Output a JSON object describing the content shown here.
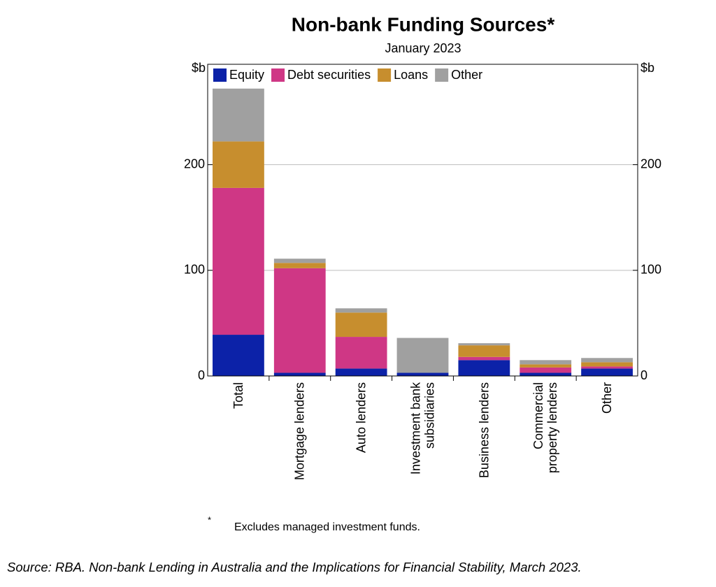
{
  "chart_data": {
    "type": "stacked_bar",
    "title": "Non-bank Funding Sources*",
    "subtitle": "January 2023",
    "ylabel": "$b",
    "y2label": "$b",
    "categories": [
      "Total",
      "Mortgage lenders",
      "Auto lenders",
      "Investment bank subsidiaries",
      "Business lenders",
      "Commercial property lenders",
      "Other"
    ],
    "series": [
      {
        "name": "Equity",
        "color": "#0c22a8",
        "values": [
          39,
          3,
          7,
          3,
          15,
          3,
          7
        ]
      },
      {
        "name": "Debt securities",
        "color": "#cf3785",
        "values": [
          139,
          99,
          30,
          0,
          3,
          5,
          2
        ]
      },
      {
        "name": "Loans",
        "color": "#c78e2e",
        "values": [
          44,
          5,
          23,
          0,
          11,
          3,
          4
        ]
      },
      {
        "name": "Other",
        "color": "#a0a0a0",
        "values": [
          50,
          4,
          4,
          33,
          2,
          4,
          4
        ]
      }
    ],
    "ylim": [
      0,
      295
    ],
    "yticks": [
      0,
      100,
      200
    ],
    "y2lim": [
      0,
      295
    ],
    "y2ticks": [
      0,
      100,
      200
    ],
    "grid": true,
    "legend": "top-left",
    "footnote_marker": "*",
    "footnote": "Excludes managed investment funds.",
    "source": "Source: RBA. Non-bank Lending in Australia and the Implications for Financial Stability, March 2023."
  }
}
